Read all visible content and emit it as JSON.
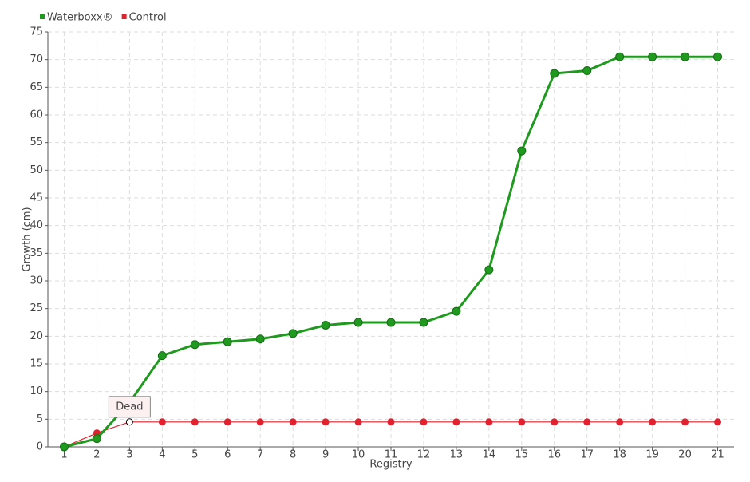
{
  "chart_data": {
    "type": "line",
    "categories": [
      "1",
      "2",
      "3",
      "4",
      "5",
      "6",
      "7",
      "8",
      "9",
      "10",
      "11",
      "12",
      "13",
      "14",
      "15",
      "16",
      "17",
      "18",
      "19",
      "20",
      "21"
    ],
    "series": [
      {
        "name": "Waterboxx®",
        "color": "#1f9a1f",
        "values": [
          0,
          1.5,
          8,
          16.5,
          18.5,
          19,
          19.5,
          20.5,
          22,
          22.5,
          22.5,
          22.5,
          24.5,
          32,
          53.5,
          67.5,
          68,
          70.5,
          70.5,
          70.5,
          70.5
        ]
      },
      {
        "name": "Control",
        "color": "#e3202e",
        "values": [
          0,
          2.5,
          4.5,
          4.5,
          4.5,
          4.5,
          4.5,
          4.5,
          4.5,
          4.5,
          4.5,
          4.5,
          4.5,
          4.5,
          4.5,
          4.5,
          4.5,
          4.5,
          4.5,
          4.5,
          4.5
        ]
      }
    ],
    "xlabel": "Registry",
    "ylabel": "Growth (cm)",
    "ylim": [
      0,
      75
    ],
    "yticks": [
      0,
      5,
      10,
      15,
      20,
      25,
      30,
      35,
      40,
      45,
      50,
      55,
      60,
      65,
      70,
      75
    ],
    "grid": true,
    "legend": "top-left",
    "annotations": [
      {
        "text": "Dead",
        "x": "3"
      }
    ]
  }
}
